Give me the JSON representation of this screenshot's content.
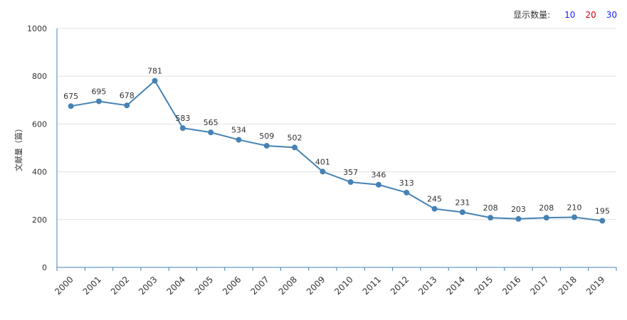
{
  "controls": {
    "label": "显示数量:",
    "options": [
      {
        "text": "10",
        "color": "#1a1aff"
      },
      {
        "text": "20",
        "color": "#e60012"
      },
      {
        "text": "30",
        "color": "#1a1aff"
      }
    ]
  },
  "chart_data": {
    "type": "line",
    "title": "",
    "xlabel": "",
    "ylabel": "文献量（篇）",
    "ylim": [
      0,
      1000
    ],
    "yticks": [
      0,
      200,
      400,
      600,
      800,
      1000
    ],
    "grid": true,
    "line_color": "#4682b4",
    "categories": [
      "2000",
      "2001",
      "2002",
      "2003",
      "2004",
      "2005",
      "2006",
      "2007",
      "2008",
      "2009",
      "2010",
      "2011",
      "2012",
      "2013",
      "2014",
      "2015",
      "2016",
      "2017",
      "2018",
      "2019"
    ],
    "series": [
      {
        "values": [
          675,
          695,
          678,
          781,
          583,
          565,
          534,
          509,
          502,
          401,
          357,
          346,
          313,
          245,
          231,
          208,
          203,
          208,
          210,
          195
        ]
      }
    ]
  }
}
